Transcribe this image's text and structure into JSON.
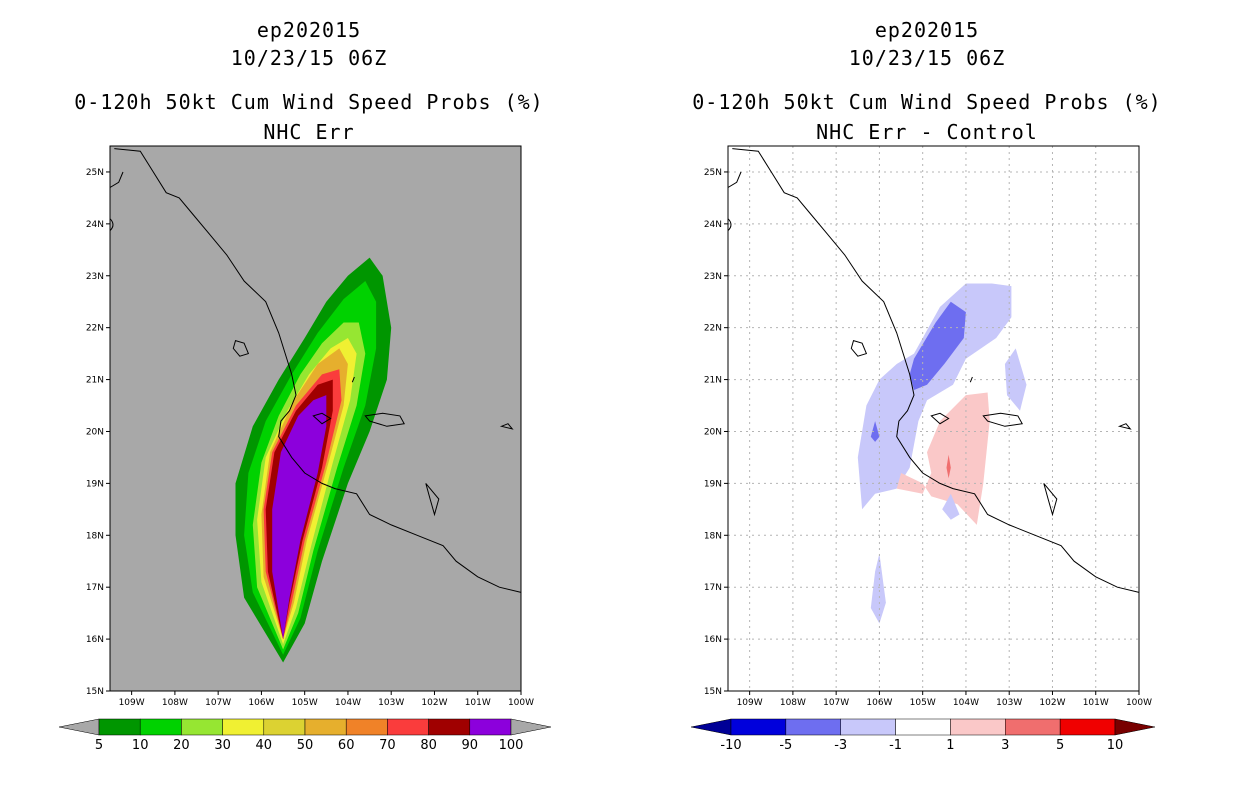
{
  "left": {
    "title1": "ep202015",
    "title2": "10/23/15 06Z",
    "title3": "0-120h 50kt Cum Wind Speed Probs (%)",
    "title4": "NHC Err",
    "background": "#a8a8a8",
    "colorbar": {
      "colors": [
        "#009600",
        "#00d200",
        "#96e632",
        "#f0f032",
        "#dcd232",
        "#e6af2d",
        "#f08228",
        "#fa3c3c",
        "#a00000",
        "#8c00dc"
      ],
      "end_color": "#a8a8a8",
      "labels": [
        "5",
        "10",
        "20",
        "30",
        "40",
        "50",
        "60",
        "70",
        "80",
        "90",
        "100"
      ]
    }
  },
  "right": {
    "title1": "ep202015",
    "title2": "10/23/15 06Z",
    "title3": "0-120h 50kt Cum Wind Speed Probs (%)",
    "title4": "NHC Err - Control",
    "background": "#ffffff",
    "colorbar": {
      "colors": [
        "#0000dc",
        "#6e6ef0",
        "#c8c8fa",
        "#ffffff",
        "#fac8c8",
        "#f06e6e",
        "#f00000"
      ],
      "low_color": "#000096",
      "high_color": "#780000",
      "labels": [
        "-10",
        "-5",
        "-3",
        "-1",
        "1",
        "3",
        "5",
        "10"
      ]
    }
  },
  "axes": {
    "lat_labels": [
      "25N",
      "24N",
      "23N",
      "22N",
      "21N",
      "20N",
      "19N",
      "18N",
      "17N",
      "16N",
      "15N"
    ],
    "lon_labels": [
      "109W",
      "108W",
      "107W",
      "106W",
      "105W",
      "104W",
      "103W",
      "102W",
      "101W",
      "100W"
    ]
  },
  "map_data": {
    "lon_range": [
      -109.5,
      -100
    ],
    "lat_range": [
      15,
      25.5
    ],
    "left_contours": [
      {
        "level": 5,
        "color": "#009600",
        "pts": [
          [
            -105.5,
            15.55
          ],
          [
            -106.4,
            16.8
          ],
          [
            -106.6,
            18.0
          ],
          [
            -106.6,
            19.0
          ],
          [
            -106.2,
            20.1
          ],
          [
            -105.6,
            21.0
          ],
          [
            -105.0,
            21.8
          ],
          [
            -104.5,
            22.5
          ],
          [
            -104.0,
            23.0
          ],
          [
            -103.5,
            23.35
          ],
          [
            -103.2,
            23.0
          ],
          [
            -103.0,
            22.0
          ],
          [
            -103.1,
            21.0
          ],
          [
            -103.5,
            20.0
          ],
          [
            -104.0,
            19.0
          ],
          [
            -104.6,
            17.5
          ],
          [
            -105.0,
            16.3
          ]
        ]
      },
      {
        "level": 10,
        "color": "#00d200",
        "pts": [
          [
            -105.5,
            15.7
          ],
          [
            -106.2,
            16.9
          ],
          [
            -106.4,
            18.0
          ],
          [
            -106.3,
            19.2
          ],
          [
            -105.9,
            20.2
          ],
          [
            -105.3,
            21.1
          ],
          [
            -104.7,
            21.9
          ],
          [
            -104.1,
            22.55
          ],
          [
            -103.6,
            22.9
          ],
          [
            -103.35,
            22.5
          ],
          [
            -103.35,
            21.6
          ],
          [
            -103.6,
            20.5
          ],
          [
            -104.1,
            19.3
          ],
          [
            -104.7,
            17.7
          ],
          [
            -105.1,
            16.4
          ]
        ]
      },
      {
        "level": 20,
        "color": "#96e632",
        "pts": [
          [
            -105.5,
            15.8
          ],
          [
            -106.1,
            17.0
          ],
          [
            -106.2,
            18.2
          ],
          [
            -106.0,
            19.4
          ],
          [
            -105.6,
            20.3
          ],
          [
            -105.1,
            21.1
          ],
          [
            -104.6,
            21.7
          ],
          [
            -104.1,
            22.1
          ],
          [
            -103.75,
            22.1
          ],
          [
            -103.6,
            21.5
          ],
          [
            -103.8,
            20.5
          ],
          [
            -104.25,
            19.3
          ],
          [
            -104.8,
            17.7
          ],
          [
            -105.15,
            16.5
          ]
        ]
      },
      {
        "level": 30,
        "color": "#f0f032",
        "pts": [
          [
            -105.5,
            15.9
          ],
          [
            -106.0,
            17.1
          ],
          [
            -106.1,
            18.3
          ],
          [
            -105.9,
            19.5
          ],
          [
            -105.4,
            20.4
          ],
          [
            -104.9,
            21.1
          ],
          [
            -104.4,
            21.6
          ],
          [
            -104.0,
            21.8
          ],
          [
            -103.8,
            21.5
          ],
          [
            -103.95,
            20.6
          ],
          [
            -104.35,
            19.4
          ],
          [
            -104.85,
            17.8
          ],
          [
            -105.2,
            16.6
          ]
        ]
      },
      {
        "level": 50,
        "color": "#e6af2d",
        "pts": [
          [
            -105.5,
            16.0
          ],
          [
            -105.95,
            17.2
          ],
          [
            -106.0,
            18.4
          ],
          [
            -105.8,
            19.6
          ],
          [
            -105.25,
            20.6
          ],
          [
            -104.7,
            21.3
          ],
          [
            -104.2,
            21.6
          ],
          [
            -104.0,
            21.3
          ],
          [
            -104.1,
            20.5
          ],
          [
            -104.45,
            19.4
          ],
          [
            -104.95,
            17.9
          ],
          [
            -105.25,
            16.7
          ]
        ]
      },
      {
        "level": 70,
        "color": "#fa3c3c",
        "pts": [
          [
            -105.5,
            16.0
          ],
          [
            -105.9,
            17.3
          ],
          [
            -105.95,
            18.5
          ],
          [
            -105.75,
            19.6
          ],
          [
            -105.2,
            20.5
          ],
          [
            -104.6,
            21.1
          ],
          [
            -104.2,
            21.2
          ],
          [
            -104.15,
            20.6
          ],
          [
            -104.5,
            19.4
          ],
          [
            -105.0,
            17.9
          ],
          [
            -105.3,
            16.7
          ]
        ]
      },
      {
        "level": 80,
        "color": "#a00000",
        "pts": [
          [
            -105.5,
            16.0
          ],
          [
            -105.85,
            17.3
          ],
          [
            -105.9,
            18.5
          ],
          [
            -105.7,
            19.6
          ],
          [
            -105.2,
            20.4
          ],
          [
            -104.7,
            20.9
          ],
          [
            -104.35,
            21.0
          ],
          [
            -104.35,
            20.4
          ],
          [
            -104.6,
            19.3
          ],
          [
            -105.05,
            17.9
          ],
          [
            -105.35,
            16.7
          ]
        ]
      },
      {
        "level": 90,
        "color": "#8c00dc",
        "pts": [
          [
            -105.5,
            16.0
          ],
          [
            -105.75,
            17.3
          ],
          [
            -105.75,
            18.5
          ],
          [
            -105.55,
            19.6
          ],
          [
            -105.15,
            20.3
          ],
          [
            -104.8,
            20.6
          ],
          [
            -104.5,
            20.7
          ],
          [
            -104.5,
            20.1
          ],
          [
            -104.7,
            19.2
          ],
          [
            -105.1,
            17.9
          ],
          [
            -105.35,
            16.8
          ]
        ]
      }
    ],
    "right_contours": [
      {
        "level": -1,
        "color": "#c8c8fa",
        "pts": [
          [
            -105.2,
            21.5
          ],
          [
            -104.6,
            22.4
          ],
          [
            -104.0,
            22.85
          ],
          [
            -103.4,
            22.85
          ],
          [
            -102.95,
            22.8
          ],
          [
            -102.95,
            22.2
          ],
          [
            -103.3,
            21.8
          ],
          [
            -104.0,
            21.4
          ],
          [
            -104.3,
            20.9
          ],
          [
            -104.9,
            20.6
          ],
          [
            -105.1,
            20.2
          ],
          [
            -105.3,
            19.3
          ],
          [
            -105.6,
            18.9
          ],
          [
            -106.1,
            18.8
          ],
          [
            -106.3,
            18.6
          ],
          [
            -106.4,
            18.5
          ],
          [
            -106.5,
            19.5
          ],
          [
            -106.3,
            20.5
          ],
          [
            -106.0,
            21.0
          ],
          [
            -105.6,
            21.3
          ]
        ]
      },
      {
        "level": -3,
        "color": "#6e6ef0",
        "pts": [
          [
            -105.2,
            21.4
          ],
          [
            -104.7,
            22.1
          ],
          [
            -104.35,
            22.5
          ],
          [
            -104.0,
            22.3
          ],
          [
            -104.05,
            21.8
          ],
          [
            -104.5,
            21.3
          ],
          [
            -104.9,
            20.9
          ],
          [
            -105.2,
            20.8
          ],
          [
            -105.3,
            21.1
          ]
        ]
      },
      {
        "level": 1,
        "color": "#fac8c8",
        "pts": [
          [
            -104.9,
            19.6
          ],
          [
            -104.6,
            20.2
          ],
          [
            -104.0,
            20.7
          ],
          [
            -103.5,
            20.75
          ],
          [
            -103.45,
            20.2
          ],
          [
            -103.6,
            19.0
          ],
          [
            -103.75,
            18.2
          ],
          [
            -104.2,
            18.6
          ],
          [
            -104.8,
            18.75
          ],
          [
            -105.0,
            19.0
          ],
          [
            -105.5,
            19.2
          ],
          [
            -105.6,
            18.9
          ],
          [
            -105.0,
            18.8
          ],
          [
            -104.8,
            19.2
          ]
        ]
      },
      {
        "level": 3,
        "color": "#f06e6e",
        "pts": [
          [
            -104.4,
            19.55
          ],
          [
            -104.35,
            19.3
          ],
          [
            -104.4,
            19.1
          ],
          [
            -104.45,
            19.3
          ]
        ]
      },
      {
        "level": -1,
        "color": "#c8c8fa",
        "pts": [
          [
            -102.85,
            21.6
          ],
          [
            -102.6,
            20.9
          ],
          [
            -102.75,
            20.4
          ],
          [
            -103.05,
            20.7
          ],
          [
            -103.1,
            21.3
          ]
        ]
      },
      {
        "level": -1,
        "color": "#c8c8fa",
        "pts": [
          [
            -106.0,
            17.65
          ],
          [
            -105.85,
            16.7
          ],
          [
            -106.0,
            16.3
          ],
          [
            -106.2,
            16.6
          ],
          [
            -106.1,
            17.3
          ]
        ]
      },
      {
        "level": -1,
        "color": "#c8c8fa",
        "pts": [
          [
            -104.35,
            18.8
          ],
          [
            -104.15,
            18.4
          ],
          [
            -104.35,
            18.3
          ],
          [
            -104.55,
            18.5
          ]
        ]
      },
      {
        "level": -3,
        "color": "#6e6ef0",
        "pts": [
          [
            -106.1,
            20.2
          ],
          [
            -106.0,
            19.9
          ],
          [
            -106.1,
            19.8
          ],
          [
            -106.2,
            19.9
          ]
        ]
      }
    ],
    "coastline": [
      [
        -109.4,
        25.45
      ],
      [
        -108.8,
        25.4
      ],
      [
        -108.5,
        25.0
      ],
      [
        -108.2,
        24.6
      ],
      [
        -107.9,
        24.5
      ],
      [
        -107.6,
        24.2
      ],
      [
        -107.2,
        23.8
      ],
      [
        -106.8,
        23.4
      ],
      [
        -106.4,
        22.9
      ],
      [
        -105.9,
        22.5
      ],
      [
        -105.6,
        21.9
      ],
      [
        -105.45,
        21.5
      ],
      [
        -105.3,
        21.1
      ],
      [
        -105.2,
        20.7
      ],
      [
        -105.35,
        20.4
      ],
      [
        -105.55,
        20.2
      ],
      [
        -105.6,
        19.9
      ],
      [
        -105.3,
        19.5
      ],
      [
        -105.0,
        19.2
      ],
      [
        -104.6,
        19.0
      ],
      [
        -104.3,
        18.9
      ],
      [
        -103.8,
        18.8
      ],
      [
        -103.5,
        18.4
      ],
      [
        -103.0,
        18.2
      ],
      [
        -102.4,
        18.0
      ],
      [
        -101.8,
        17.8
      ],
      [
        -101.5,
        17.5
      ],
      [
        -101.0,
        17.2
      ],
      [
        -100.5,
        17.0
      ],
      [
        -100.0,
        16.9
      ]
    ],
    "baja": [
      [
        -109.5,
        24.7
      ],
      [
        -109.3,
        24.8
      ],
      [
        -109.2,
        25.0
      ]
    ],
    "islands": [
      [
        [
          -106.6,
          21.75
        ],
        [
          -106.4,
          21.7
        ],
        [
          -106.3,
          21.5
        ],
        [
          -106.5,
          21.45
        ],
        [
          -106.65,
          21.6
        ]
      ],
      [
        [
          -104.8,
          20.3
        ],
        [
          -104.6,
          20.35
        ],
        [
          -104.4,
          20.25
        ],
        [
          -104.6,
          20.15
        ]
      ],
      [
        [
          -103.6,
          20.3
        ],
        [
          -103.2,
          20.35
        ],
        [
          -102.8,
          20.3
        ],
        [
          -102.7,
          20.15
        ],
        [
          -103.1,
          20.1
        ],
        [
          -103.5,
          20.2
        ]
      ],
      [
        [
          -102.2,
          19.0
        ],
        [
          -102.1,
          18.7
        ],
        [
          -102.0,
          18.4
        ],
        [
          -101.9,
          18.7
        ]
      ],
      [
        [
          -100.45,
          20.1
        ],
        [
          -100.3,
          20.15
        ],
        [
          -100.2,
          20.05
        ]
      ],
      [
        [
          -103.9,
          20.95
        ],
        [
          -103.85,
          21.05
        ]
      ]
    ]
  }
}
